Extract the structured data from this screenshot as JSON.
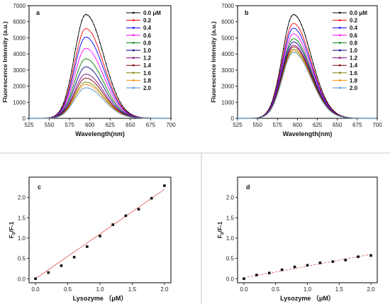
{
  "chart_data": [
    {
      "panel": "a",
      "type": "line",
      "xlabel": "Wavelength(nm)",
      "ylabel": "Fluorescence Intensity (a.u.)",
      "xlim": [
        525,
        700
      ],
      "ylim": [
        0,
        7000
      ],
      "xticks": [
        525,
        550,
        575,
        600,
        625,
        650,
        675,
        700
      ],
      "yticks": [
        0,
        1000,
        2000,
        3000,
        4000,
        5000,
        6000,
        7000
      ],
      "peak_wavelength": 595,
      "legend_position": "top-right",
      "series": [
        {
          "name": "0.0 μM",
          "color": "#000000",
          "peak": 6450
        },
        {
          "name": "0.2",
          "color": "#ff0000",
          "peak": 5580
        },
        {
          "name": "0.4",
          "color": "#0000ff",
          "peak": 5050
        },
        {
          "name": "0.6",
          "color": "#ff00ff",
          "peak": 4350
        },
        {
          "name": "0.8",
          "color": "#008000",
          "peak": 3700
        },
        {
          "name": "1.0",
          "color": "#000080",
          "peak": 3200
        },
        {
          "name": "1.2",
          "color": "#800080",
          "peak": 2750
        },
        {
          "name": "1.4",
          "color": "#800000",
          "peak": 2500
        },
        {
          "name": "1.6",
          "color": "#808000",
          "peak": 2250
        },
        {
          "name": "1.8",
          "color": "#ff8c00",
          "peak": 2100
        },
        {
          "name": "2.0",
          "color": "#4a90c8",
          "peak": 1900
        }
      ]
    },
    {
      "panel": "b",
      "type": "line",
      "xlabel": "Wavelength(nm)",
      "ylabel": "Fluorescence Intensity (a.u.)",
      "xlim": [
        525,
        700
      ],
      "ylim": [
        0,
        7000
      ],
      "xticks": [
        525,
        550,
        575,
        600,
        625,
        650,
        675,
        700
      ],
      "yticks": [
        0,
        1000,
        2000,
        3000,
        4000,
        5000,
        6000,
        7000
      ],
      "peak_wavelength": 595,
      "legend_position": "top-right",
      "series": [
        {
          "name": "0.0 μM",
          "color": "#000000",
          "peak": 6450
        },
        {
          "name": "0.2",
          "color": "#ff0000",
          "peak": 5900
        },
        {
          "name": "0.4",
          "color": "#0000ff",
          "peak": 5600
        },
        {
          "name": "0.6",
          "color": "#ff00ff",
          "peak": 5250
        },
        {
          "name": "0.8",
          "color": "#008000",
          "peak": 4950
        },
        {
          "name": "1.0",
          "color": "#000080",
          "peak": 4750
        },
        {
          "name": "1.2",
          "color": "#800080",
          "peak": 4550
        },
        {
          "name": "1.4",
          "color": "#800000",
          "peak": 4450
        },
        {
          "name": "1.6",
          "color": "#808000",
          "peak": 4300
        },
        {
          "name": "1.8",
          "color": "#ff8c00",
          "peak": 4200
        },
        {
          "name": "2.0",
          "color": "#4a90c8",
          "peak": 4100
        }
      ]
    },
    {
      "panel": "c",
      "type": "scatter",
      "xlabel": "Lysozyme （μM）",
      "ylabel_main": "F",
      "ylabel_sub": "0",
      "ylabel_rest": "/F-1",
      "xlim": [
        -0.1,
        2.1
      ],
      "ylim": [
        -0.1,
        2.5
      ],
      "xticks": [
        0.0,
        0.5,
        1.0,
        1.5,
        2.0
      ],
      "xtick_labels": [
        "0.0",
        "0.5",
        "1.0",
        "1.5",
        "2.0"
      ],
      "yticks": [
        0.0,
        0.5,
        1.0,
        1.5,
        2.0
      ],
      "ytick_labels": [
        "0.0",
        "0.5",
        "1.0",
        "1.5",
        "2.0"
      ],
      "x": [
        0.0,
        0.2,
        0.4,
        0.6,
        0.8,
        1.0,
        1.2,
        1.4,
        1.6,
        1.8,
        2.0
      ],
      "y": [
        0.0,
        0.15,
        0.32,
        0.53,
        0.79,
        1.05,
        1.33,
        1.55,
        1.71,
        1.98,
        2.29
      ],
      "fit": {
        "x": [
          0.0,
          2.0
        ],
        "y": [
          0.0,
          2.2
        ],
        "color": "#e06060",
        "style": "solid"
      }
    },
    {
      "panel": "d",
      "type": "scatter",
      "xlabel": "Lysozyme （μM）",
      "ylabel_main": "F",
      "ylabel_sub": "0",
      "ylabel_rest": "/F-1",
      "xlim": [
        -0.1,
        2.1
      ],
      "ylim": [
        -0.1,
        2.5
      ],
      "xticks": [
        0.0,
        0.5,
        1.0,
        1.5,
        2.0
      ],
      "xtick_labels": [
        "0.0",
        "0.5",
        "1.0",
        "1.5",
        "2.0"
      ],
      "yticks": [
        0.0,
        0.5,
        1.0,
        1.5,
        2.0
      ],
      "ytick_labels": [
        "0.0",
        "0.5",
        "1.0",
        "1.5",
        "2.0"
      ],
      "x": [
        0.0,
        0.2,
        0.4,
        0.6,
        0.8,
        1.0,
        1.2,
        1.4,
        1.6,
        1.8,
        2.0
      ],
      "y": [
        0.0,
        0.09,
        0.14,
        0.22,
        0.29,
        0.33,
        0.39,
        0.42,
        0.46,
        0.54,
        0.57
      ],
      "fit": {
        "x": [
          0.0,
          2.0
        ],
        "y": [
          0.02,
          0.6
        ],
        "color": "#e06060",
        "style": "dashed"
      }
    }
  ]
}
